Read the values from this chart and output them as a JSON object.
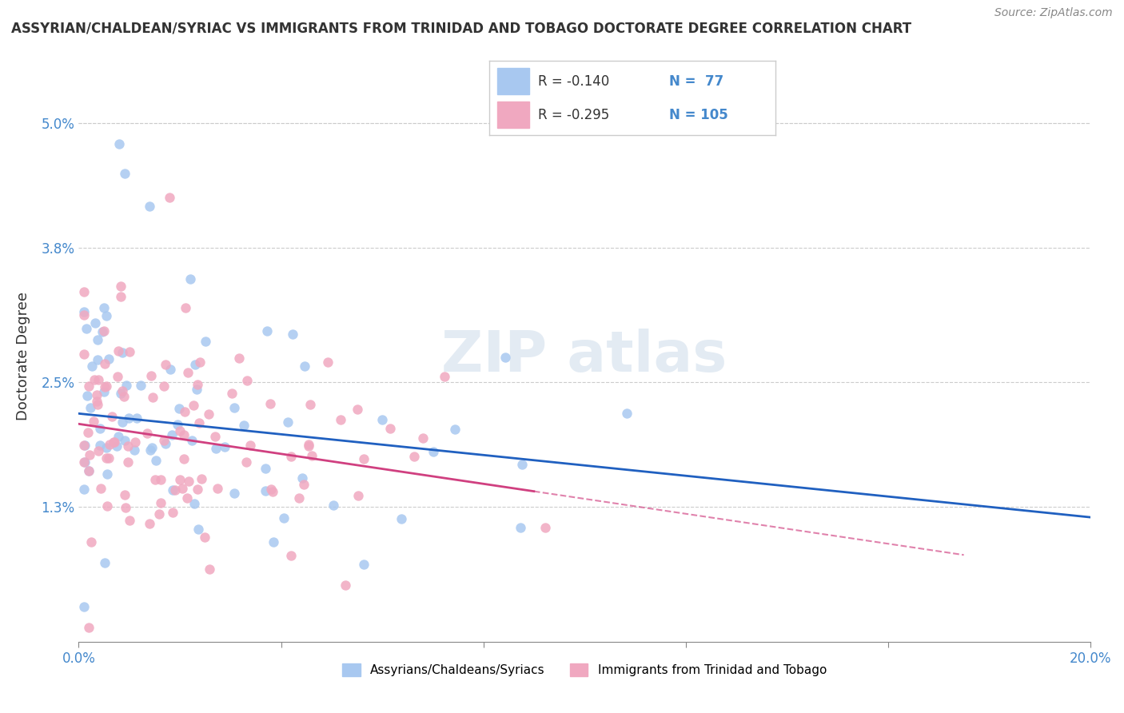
{
  "title": "ASSYRIAN/CHALDEAN/SYRIAC VS IMMIGRANTS FROM TRINIDAD AND TOBAGO DOCTORATE DEGREE CORRELATION CHART",
  "source": "Source: ZipAtlas.com",
  "ylabel": "Doctorate Degree",
  "ytick_labels": [
    "1.3%",
    "2.5%",
    "3.8%",
    "5.0%"
  ],
  "ytick_values": [
    0.013,
    0.025,
    0.038,
    0.05
  ],
  "xlim": [
    0.0,
    0.2
  ],
  "ylim": [
    0.0,
    0.055
  ],
  "legend_r1": "R = -0.140",
  "legend_n1": "N =  77",
  "legend_r2": "R = -0.295",
  "legend_n2": "N = 105",
  "color_blue": "#a8c8f0",
  "color_pink": "#f0a8c0",
  "line_color_blue": "#2060c0",
  "line_color_pink": "#d04080",
  "intercept_blue": 0.022,
  "slope_blue": -0.05,
  "intercept_pink": 0.021,
  "slope_pink": -0.0722,
  "background_color": "#ffffff",
  "grid_color": "#cccccc"
}
